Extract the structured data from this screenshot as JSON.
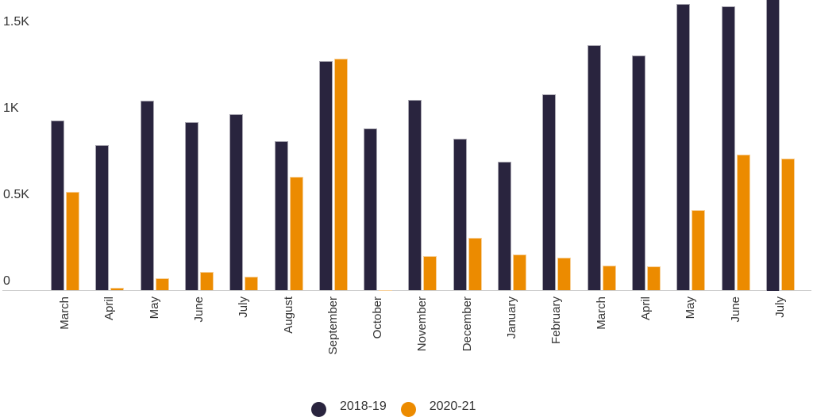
{
  "colors": {
    "series_1": "#29243e",
    "series_2": "#ec8b00",
    "text": "#333333",
    "axis": "#cccccc"
  },
  "y_axis": {
    "ticks": [
      {
        "label": "0",
        "value": 0
      },
      {
        "label": "0.5K",
        "value": 500
      },
      {
        "label": "1K",
        "value": 1000
      },
      {
        "label": "1.5K",
        "value": 1500
      }
    ]
  },
  "legend": {
    "items": [
      {
        "label": "2018-19",
        "color": "#29243e"
      },
      {
        "label": "2020-21",
        "color": "#ec8b00"
      }
    ]
  },
  "chart_data": {
    "type": "bar",
    "title": "",
    "xlabel": "",
    "ylabel": "",
    "ylim": [
      0,
      1700
    ],
    "grid": false,
    "legend_position": "bottom",
    "categories": [
      "March",
      "April",
      "May",
      "June",
      "July",
      "August",
      "September",
      "October",
      "November",
      "December",
      "January",
      "February",
      "March",
      "April",
      "May",
      "June",
      "July"
    ],
    "series": [
      {
        "name": "2018-19",
        "color": "#29243e",
        "values": [
          985,
          842,
          1100,
          977,
          1020,
          865,
          1330,
          940,
          1103,
          882,
          747,
          1136,
          1423,
          1360,
          1660,
          1645,
          1700
        ]
      },
      {
        "name": "2020-21",
        "color": "#ec8b00",
        "values": [
          571,
          16,
          72,
          109,
          80,
          658,
          1346,
          3,
          202,
          305,
          207,
          192,
          144,
          138,
          468,
          787,
          764
        ]
      }
    ]
  }
}
